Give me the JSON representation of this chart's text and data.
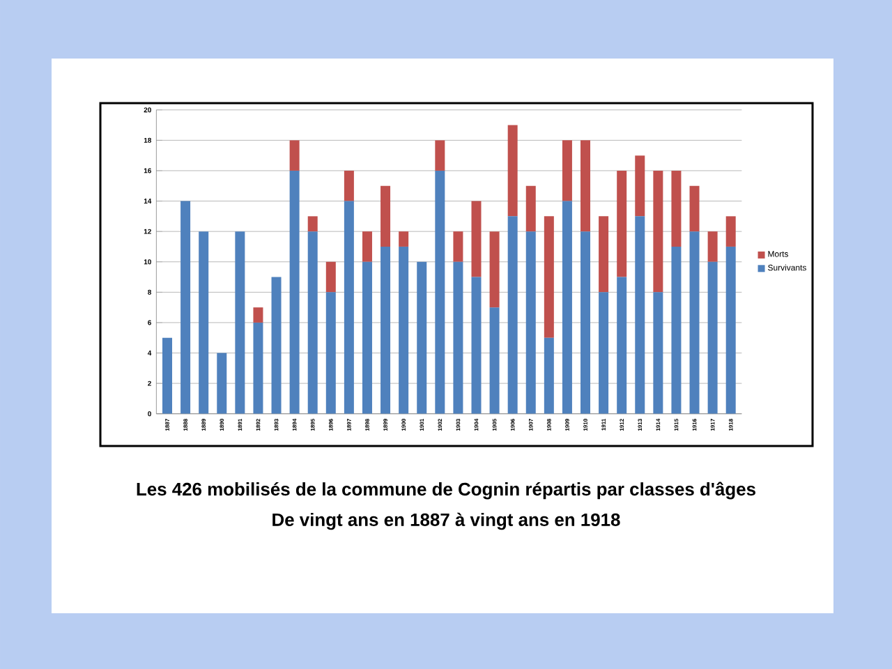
{
  "chart_data": {
    "type": "bar",
    "stacked": true,
    "title": "Les 426 mobilisés de la commune de Cognin répartis par classes d'âges",
    "subtitle": "De vingt ans en 1887 à vingt ans en 1918",
    "categories": [
      "1887",
      "1888",
      "1889",
      "1890",
      "1891",
      "1892",
      "1893",
      "1894",
      "1895",
      "1896",
      "1897",
      "1898",
      "1899",
      "1900",
      "1901",
      "1902",
      "1903",
      "1904",
      "1905",
      "1906",
      "1907",
      "1908",
      "1909",
      "1910",
      "1911",
      "1912",
      "1913",
      "1914",
      "1915",
      "1916",
      "1917",
      "1918"
    ],
    "series": [
      {
        "name": "Survivants",
        "color": "#4f81bd",
        "values": [
          5,
          14,
          12,
          4,
          12,
          6,
          9,
          16,
          12,
          8,
          14,
          10,
          11,
          11,
          10,
          16,
          10,
          9,
          7,
          13,
          12,
          5,
          14,
          12,
          8,
          9,
          13,
          8,
          11,
          12,
          10,
          11
        ]
      },
      {
        "name": "Morts",
        "color": "#c0504d",
        "values": [
          0,
          0,
          0,
          0,
          0,
          1,
          0,
          2,
          1,
          2,
          2,
          2,
          4,
          1,
          0,
          2,
          2,
          5,
          5,
          6,
          3,
          8,
          4,
          6,
          5,
          7,
          4,
          8,
          5,
          3,
          2,
          2
        ]
      }
    ],
    "ylim": [
      0,
      20
    ],
    "yticks": [
      0,
      2,
      4,
      6,
      8,
      10,
      12,
      14,
      16,
      18,
      20
    ],
    "grid": "y",
    "legend": "right"
  }
}
